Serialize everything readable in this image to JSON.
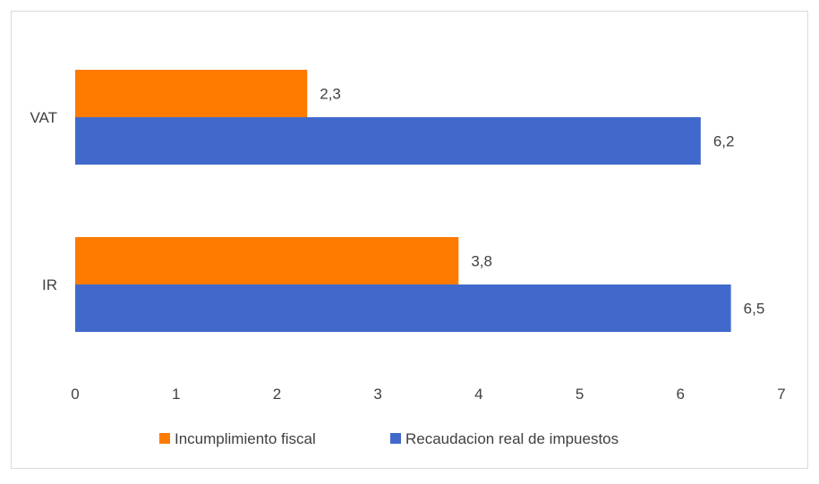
{
  "chart_data": {
    "type": "bar",
    "orientation": "horizontal",
    "title": "",
    "xlabel": "",
    "ylabel": "",
    "categories": [
      "VAT",
      "IR"
    ],
    "series": [
      {
        "name": "Incumplimiento fiscal",
        "values": [
          2.3,
          3.8
        ],
        "labels": [
          "2,3",
          "3,8"
        ],
        "color": "#FF7B00"
      },
      {
        "name": "Recaudacion real de  impuestos",
        "values": [
          6.2,
          6.5
        ],
        "labels": [
          "6,2",
          "6,5"
        ],
        "color": "#4169CB"
      }
    ],
    "xlim": [
      0,
      7
    ],
    "xticks": [
      "0",
      "1",
      "2",
      "3",
      "4",
      "5",
      "6",
      "7"
    ],
    "grid": false,
    "legend_position": "bottom"
  }
}
